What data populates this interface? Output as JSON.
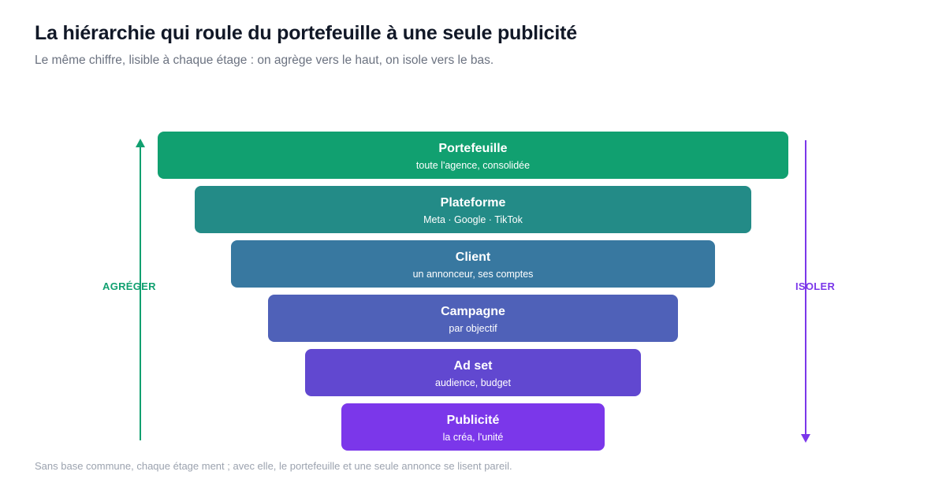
{
  "header": {
    "title": "La hiérarchie qui roule du portefeuille à une seule publicité",
    "subtitle": "Le même chiffre, lisible à chaque étage : on agrège vers le haut, on isole vers le bas."
  },
  "tiers": [
    {
      "name": "Portefeuille",
      "desc": "toute l'agence, consolidée",
      "color": "#11a070"
    },
    {
      "name": "Plateforme",
      "desc": "Meta · Google · TikTok",
      "color": "#238b87"
    },
    {
      "name": "Client",
      "desc": "un annonceur, ses comptes",
      "color": "#3878a0"
    },
    {
      "name": "Campagne",
      "desc": "par objectif",
      "color": "#4f61b8"
    },
    {
      "name": "Ad set",
      "desc": "audience, budget",
      "color": "#6148d0"
    },
    {
      "name": "Publicité",
      "desc": "la créa, l'unité",
      "color": "#7b37ea"
    }
  ],
  "axes": {
    "aggregate_label": "AGRÉGER",
    "aggregate_direction": "up",
    "aggregate_color": "#11a070",
    "isolate_label": "ISOLER",
    "isolate_direction": "down",
    "isolate_color": "#7b37ea"
  },
  "footnote": "Sans base commune, chaque étage ment ; avec elle, le portefeuille et une seule annonce se lisent pareil."
}
